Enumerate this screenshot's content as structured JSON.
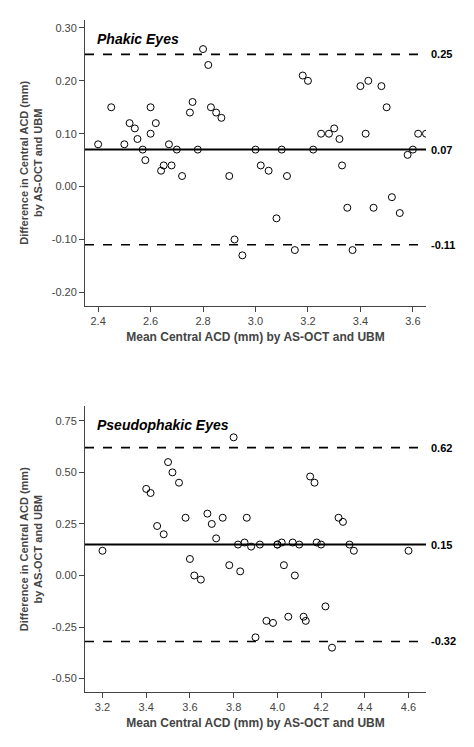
{
  "chart_data": [
    {
      "type": "scatter",
      "title": "Phakic Eyes",
      "x_label": "Mean Central ACD (mm) by AS-OCT and UBM",
      "y_label": "Difference in Central ACD (mm)\nby AS-OCT and UBM",
      "x": [
        2.4,
        2.45,
        2.5,
        2.52,
        2.54,
        2.55,
        2.57,
        2.58,
        2.6,
        2.6,
        2.62,
        2.64,
        2.65,
        2.67,
        2.68,
        2.7,
        2.72,
        2.75,
        2.76,
        2.78,
        2.8,
        2.82,
        2.83,
        2.85,
        2.87,
        2.9,
        2.92,
        2.95,
        3.0,
        3.02,
        3.05,
        3.08,
        3.1,
        3.12,
        3.15,
        3.18,
        3.2,
        3.22,
        3.25,
        3.28,
        3.3,
        3.32,
        3.33,
        3.35,
        3.37,
        3.4,
        3.42,
        3.43,
        3.45,
        3.48,
        3.5,
        3.52,
        3.55,
        3.58,
        3.6,
        3.62,
        3.65
      ],
      "values": [
        0.08,
        0.15,
        0.08,
        0.12,
        0.11,
        0.09,
        0.07,
        0.05,
        0.1,
        0.15,
        0.12,
        0.03,
        0.04,
        0.08,
        0.04,
        0.07,
        0.02,
        0.14,
        0.16,
        0.07,
        0.26,
        0.23,
        0.15,
        0.14,
        0.13,
        0.02,
        -0.1,
        -0.13,
        0.07,
        0.04,
        0.03,
        -0.06,
        0.07,
        0.02,
        -0.12,
        0.21,
        0.2,
        0.07,
        0.1,
        0.1,
        0.11,
        0.09,
        0.04,
        -0.04,
        -0.12,
        0.19,
        0.1,
        0.2,
        -0.04,
        0.19,
        0.15,
        -0.02,
        -0.05,
        0.06,
        0.07,
        0.1,
        0.1
      ],
      "color": "#000000",
      "marker": "open circle",
      "lines": [
        {
          "value": 0.07,
          "label": "0.07",
          "line_style": "solid",
          "color": "#000000"
        },
        {
          "value": 0.25,
          "label": "0.25",
          "line_style": "dashed",
          "color": "#000000"
        },
        {
          "value": -0.11,
          "label": "-0.11",
          "line_style": "dashed",
          "color": "#000000"
        }
      ],
      "xlim": [
        2.35,
        3.65
      ],
      "ylim": [
        -0.225,
        0.315
      ],
      "xticks": [
        2.4,
        2.6,
        2.8,
        {
          "value": 3.0,
          "label": "3.0"
        },
        3.2,
        3.4,
        3.6
      ],
      "yticks": [
        {
          "value": -0.2,
          "label": "-0.20"
        },
        {
          "value": -0.1,
          "label": "-0.10"
        },
        {
          "value": 0.0,
          "label": "0.00"
        },
        {
          "value": 0.1,
          "label": "0.10"
        },
        {
          "value": 0.2,
          "label": "0.20"
        },
        {
          "value": 0.3,
          "label": "0.30"
        }
      ],
      "grid": false
    },
    {
      "type": "scatter",
      "title": "Pseudophakic Eyes",
      "x_label": "Mean Central ACD (mm) by AS-OCT and UBM",
      "y_label": "Difference in Central ACD (mm)\nby AS-OCT and UBM",
      "x": [
        3.2,
        3.4,
        3.42,
        3.45,
        3.48,
        3.5,
        3.52,
        3.55,
        3.58,
        3.6,
        3.62,
        3.65,
        3.68,
        3.7,
        3.72,
        3.75,
        3.78,
        3.8,
        3.82,
        3.83,
        3.85,
        3.86,
        3.88,
        3.9,
        3.92,
        3.95,
        3.98,
        4.0,
        4.0,
        4.02,
        4.03,
        4.05,
        4.07,
        4.08,
        4.1,
        4.12,
        4.13,
        4.15,
        4.17,
        4.18,
        4.2,
        4.22,
        4.25,
        4.28,
        4.3,
        4.33,
        4.35,
        4.6
      ],
      "values": [
        0.12,
        0.42,
        0.4,
        0.24,
        0.2,
        0.55,
        0.5,
        0.45,
        0.28,
        0.08,
        0.0,
        -0.02,
        0.3,
        0.25,
        0.18,
        0.28,
        0.05,
        0.67,
        0.15,
        0.02,
        0.16,
        0.28,
        0.14,
        -0.3,
        0.15,
        -0.22,
        -0.23,
        0.15,
        0.15,
        0.16,
        0.05,
        -0.2,
        0.16,
        0.0,
        0.15,
        -0.2,
        -0.22,
        0.48,
        0.45,
        0.16,
        0.15,
        -0.15,
        -0.35,
        0.28,
        0.26,
        0.15,
        0.12,
        0.12
      ],
      "color": "#000000",
      "marker": "open circle",
      "lines": [
        {
          "value": 0.15,
          "label": "0.15",
          "line_style": "solid",
          "color": "#000000"
        },
        {
          "value": 0.62,
          "label": "0.62",
          "line_style": "dashed",
          "color": "#000000"
        },
        {
          "value": -0.32,
          "label": "-0.32",
          "line_style": "dashed",
          "color": "#000000"
        }
      ],
      "xlim": [
        3.12,
        4.68
      ],
      "ylim": [
        -0.565,
        0.82
      ],
      "xticks": [
        3.2,
        3.4,
        3.6,
        3.8,
        {
          "value": 4.0,
          "label": "4.0"
        },
        4.2,
        4.4,
        4.6
      ],
      "yticks": [
        {
          "value": -0.5,
          "label": "-0.50"
        },
        -0.25,
        {
          "value": 0.0,
          "label": "0.00"
        },
        0.25,
        {
          "value": 0.5,
          "label": "0.50"
        },
        0.75
      ],
      "grid": false
    }
  ]
}
